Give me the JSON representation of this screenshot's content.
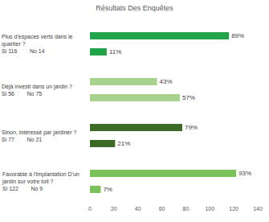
{
  "chart_data": {
    "type": "bar",
    "orientation": "horizontal",
    "title": "Résultats Des Enquêtes",
    "categories": [
      "Plus d'espaces verts dans le quartier ?",
      "Déjà investi dans un jardin ?",
      "Sinon, intéressé par jardiner ?",
      "Favorable à l'implantation D'un jardin sur votre toit ?"
    ],
    "notes": [
      [
        "Si 116",
        "No 14"
      ],
      [
        "Si 56",
        "No 75"
      ],
      [
        "Si 77",
        "No 21"
      ],
      [
        "Si 122",
        "No 9"
      ]
    ],
    "colors": [
      "#21a34a",
      "#a9d18e",
      "#3b6b26",
      "#7cc25a"
    ],
    "series": [
      {
        "values": [
          116,
          56,
          77,
          122
        ],
        "percent_labels": [
          "89%",
          "43%",
          "79%",
          "93%"
        ]
      },
      {
        "values": [
          14,
          75,
          21,
          9
        ],
        "percent_labels": [
          "11%",
          "57%",
          "21%",
          "7%"
        ]
      }
    ],
    "xlim": [
      0,
      140
    ],
    "xticks": [
      0,
      20,
      40,
      60,
      80,
      100,
      120,
      140
    ],
    "grid": false,
    "data_labels": true
  }
}
